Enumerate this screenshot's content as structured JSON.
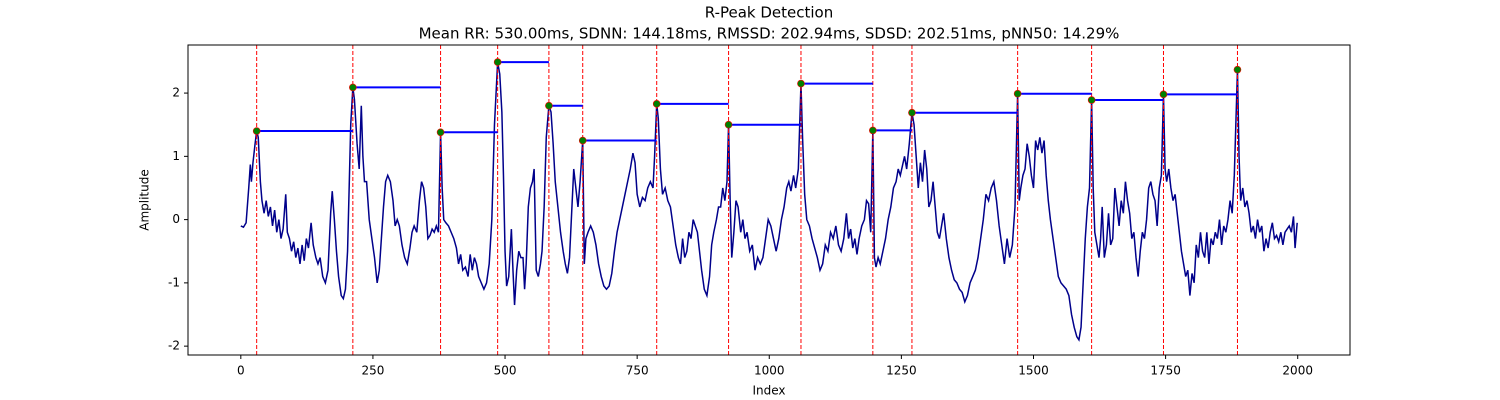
{
  "chart_data": {
    "type": "line",
    "title": "R-Peak Detection",
    "subtitle": "Mean RR: 530.00ms, SDNN: 144.18ms, RMSSD: 202.94ms, SDSD: 202.51ms, pNN50: 14.29%",
    "x_label": "Index",
    "y_label": "Amplitude",
    "xlim": [
      -99.95,
      2098.95
    ],
    "ylim": [
      -2.14,
      2.76
    ],
    "xticks": [
      0,
      250,
      500,
      750,
      1000,
      1250,
      1500,
      1750,
      2000
    ],
    "yticks": [
      -2,
      -1,
      0,
      1,
      2
    ],
    "signal": {
      "color": "#00008b",
      "x": [
        0,
        5,
        10,
        15,
        18,
        20,
        23,
        27,
        30,
        33,
        37,
        40,
        44,
        48,
        52,
        56,
        60,
        64,
        68,
        72,
        76,
        80,
        85,
        88,
        92,
        96,
        100,
        104,
        108,
        112,
        116,
        120,
        124,
        128,
        133,
        137,
        142,
        146,
        150,
        155,
        160,
        165,
        170,
        173,
        177,
        181,
        185,
        190,
        194,
        198,
        202,
        205,
        208,
        212,
        215,
        220,
        224,
        228,
        231,
        234,
        238,
        243,
        248,
        253,
        258,
        262,
        266,
        270,
        274,
        278,
        283,
        288,
        292,
        296,
        300,
        305,
        310,
        315,
        320,
        324,
        328,
        333,
        338,
        342,
        346,
        350,
        354,
        358,
        362,
        366,
        370,
        374,
        378,
        381,
        384,
        388,
        393,
        398,
        403,
        408,
        412,
        416,
        420,
        425,
        430,
        434,
        438,
        442,
        446,
        450,
        455,
        460,
        465,
        470,
        475,
        480,
        486,
        490,
        494,
        497,
        500,
        503,
        507,
        512,
        515,
        518,
        522,
        526,
        530,
        534,
        537,
        540,
        544,
        548,
        552,
        555,
        559,
        563,
        567,
        570,
        574,
        578,
        583,
        587,
        591,
        595,
        600,
        605,
        610,
        614,
        618,
        622,
        626,
        630,
        634,
        638,
        642,
        647,
        650,
        653,
        657,
        662,
        667,
        672,
        677,
        682,
        687,
        692,
        697,
        702,
        707,
        712,
        717,
        722,
        727,
        732,
        737,
        742,
        746,
        750,
        755,
        760,
        765,
        770,
        775,
        780,
        783,
        787,
        790,
        794,
        798,
        803,
        808,
        813,
        818,
        823,
        828,
        832,
        836,
        840,
        844,
        848,
        852,
        856,
        860,
        864,
        868,
        872,
        877,
        882,
        887,
        891,
        895,
        900,
        904,
        908,
        912,
        916,
        920,
        923,
        926,
        929,
        933,
        937,
        941,
        946,
        950,
        954,
        958,
        963,
        968,
        973,
        978,
        983,
        988,
        993,
        998,
        1003,
        1008,
        1013,
        1018,
        1023,
        1028,
        1033,
        1037,
        1041,
        1046,
        1050,
        1055,
        1060,
        1063,
        1067,
        1071,
        1076,
        1081,
        1086,
        1091,
        1096,
        1101,
        1106,
        1111,
        1116,
        1121,
        1126,
        1131,
        1136,
        1141,
        1146,
        1150,
        1154,
        1158,
        1162,
        1166,
        1170,
        1175,
        1180,
        1184,
        1188,
        1192,
        1196,
        1199,
        1202,
        1206,
        1210,
        1215,
        1220,
        1225,
        1230,
        1235,
        1240,
        1244,
        1248,
        1252,
        1256,
        1260,
        1265,
        1270,
        1274,
        1278,
        1282,
        1286,
        1290,
        1294,
        1298,
        1302,
        1306,
        1310,
        1314,
        1318,
        1322,
        1326,
        1330,
        1335,
        1340,
        1345,
        1350,
        1355,
        1360,
        1365,
        1370,
        1375,
        1380,
        1385,
        1390,
        1395,
        1400,
        1405,
        1410,
        1415,
        1420,
        1425,
        1430,
        1435,
        1440,
        1445,
        1450,
        1455,
        1460,
        1465,
        1470,
        1473,
        1476,
        1480,
        1484,
        1488,
        1492,
        1496,
        1500,
        1504,
        1508,
        1512,
        1516,
        1520,
        1524,
        1528,
        1532,
        1537,
        1542,
        1547,
        1552,
        1557,
        1562,
        1567,
        1572,
        1577,
        1582,
        1586,
        1590,
        1594,
        1598,
        1602,
        1606,
        1610,
        1613,
        1616,
        1620,
        1624,
        1627,
        1630,
        1634,
        1638,
        1642,
        1646,
        1650,
        1654,
        1658,
        1662,
        1666,
        1670,
        1674,
        1678,
        1682,
        1686,
        1690,
        1694,
        1698,
        1702,
        1706,
        1710,
        1714,
        1718,
        1722,
        1726,
        1730,
        1734,
        1738,
        1742,
        1746,
        1749,
        1752,
        1756,
        1760,
        1764,
        1768,
        1772,
        1776,
        1780,
        1784,
        1788,
        1792,
        1796,
        1800,
        1804,
        1808,
        1812,
        1816,
        1820,
        1824,
        1828,
        1832,
        1836,
        1840,
        1844,
        1848,
        1852,
        1856,
        1860,
        1864,
        1868,
        1872,
        1876,
        1880,
        1886,
        1889,
        1892,
        1896,
        1900,
        1904,
        1908,
        1912,
        1916,
        1920,
        1924,
        1928,
        1932,
        1936,
        1940,
        1944,
        1948,
        1952,
        1956,
        1960,
        1964,
        1968,
        1972,
        1976,
        1980,
        1984,
        1988,
        1992,
        1995,
        1999
      ],
      "values": [
        -0.1,
        -0.12,
        -0.05,
        0.5,
        0.87,
        0.6,
        0.9,
        1.2,
        1.4,
        1.3,
        0.6,
        0.3,
        0.1,
        0.3,
        0.05,
        0.2,
        -0.1,
        0.15,
        -0.2,
        0.0,
        -0.3,
        -0.15,
        0.4,
        -0.2,
        -0.3,
        -0.5,
        -0.35,
        -0.6,
        -0.45,
        -0.7,
        -0.4,
        -0.65,
        -0.3,
        -0.45,
        -0.05,
        -0.4,
        -0.6,
        -0.7,
        -0.6,
        -0.9,
        -1.0,
        -0.8,
        0.1,
        0.45,
        0.0,
        -0.5,
        -0.9,
        -1.2,
        -1.25,
        -1.1,
        -0.5,
        0.5,
        1.5,
        2.09,
        1.9,
        1.2,
        0.8,
        1.8,
        1.0,
        0.6,
        0.6,
        0.0,
        -0.3,
        -0.6,
        -1.0,
        -0.8,
        -0.3,
        0.2,
        0.6,
        0.7,
        0.6,
        0.3,
        -0.1,
        0.0,
        -0.1,
        -0.4,
        -0.6,
        -0.7,
        -0.45,
        -0.2,
        -0.1,
        -0.2,
        0.3,
        0.6,
        0.5,
        0.2,
        -0.3,
        -0.25,
        -0.15,
        -0.2,
        -0.1,
        -0.2,
        1.38,
        0.5,
        0.0,
        -0.05,
        -0.1,
        -0.2,
        -0.3,
        -0.45,
        -0.7,
        -0.55,
        -0.8,
        -0.75,
        -0.9,
        -0.55,
        -0.8,
        -0.6,
        -0.7,
        -0.9,
        -1.0,
        -1.1,
        -1.0,
        -0.7,
        0.0,
        1.5,
        2.49,
        2.3,
        1.7,
        0.7,
        -0.5,
        -1.05,
        -0.9,
        -0.15,
        -0.8,
        -1.35,
        -0.8,
        -0.5,
        -0.6,
        -0.6,
        -1.1,
        -0.7,
        0.2,
        0.5,
        0.6,
        0.8,
        -0.8,
        -0.9,
        -0.7,
        -0.5,
        0.2,
        1.3,
        1.8,
        1.7,
        1.2,
        0.6,
        0.2,
        -0.2,
        -0.5,
        -0.7,
        -0.85,
        -0.6,
        0.1,
        0.8,
        0.5,
        0.2,
        0.6,
        1.25,
        -0.7,
        -0.3,
        -0.2,
        -0.1,
        -0.2,
        -0.4,
        -0.7,
        -0.9,
        -1.05,
        -1.1,
        -1.05,
        -0.85,
        -0.5,
        -0.2,
        0.0,
        0.2,
        0.4,
        0.6,
        0.8,
        1.05,
        0.9,
        0.4,
        0.2,
        0.35,
        0.3,
        0.5,
        0.6,
        0.5,
        1.0,
        1.83,
        1.6,
        0.8,
        0.4,
        0.5,
        0.3,
        0.2,
        -0.1,
        -0.4,
        -0.6,
        -0.7,
        -0.3,
        -0.6,
        -0.5,
        -0.2,
        -0.3,
        0.0,
        -0.1,
        -0.2,
        -0.5,
        -0.8,
        -1.1,
        -1.2,
        -0.9,
        -0.4,
        -0.2,
        0.0,
        0.2,
        0.2,
        0.5,
        0.3,
        0.6,
        1.5,
        0.3,
        -0.6,
        -0.2,
        0.3,
        0.2,
        -0.2,
        0.0,
        -0.3,
        -0.2,
        -0.5,
        -0.4,
        -0.8,
        -0.6,
        -0.7,
        -0.6,
        -0.3,
        0.0,
        -0.1,
        -0.3,
        -0.5,
        -0.3,
        0.0,
        0.2,
        0.5,
        0.6,
        0.45,
        0.7,
        0.5,
        0.8,
        2.15,
        1.3,
        0.4,
        0.0,
        -0.1,
        -0.3,
        -0.45,
        -0.6,
        -0.8,
        -0.7,
        -0.4,
        -0.5,
        -0.2,
        -0.3,
        -0.1,
        -0.4,
        -0.5,
        -0.3,
        0.1,
        -0.3,
        -0.15,
        -0.45,
        -0.3,
        -0.55,
        -0.3,
        -0.1,
        0.0,
        0.3,
        0.25,
        -0.2,
        1.41,
        -0.6,
        -0.75,
        -0.6,
        -0.7,
        -0.5,
        -0.3,
        0.0,
        0.2,
        0.5,
        0.6,
        0.8,
        0.7,
        0.85,
        1.0,
        0.8,
        1.2,
        1.69,
        1.5,
        1.0,
        0.5,
        0.9,
        0.6,
        1.1,
        0.8,
        0.2,
        0.3,
        0.6,
        0.2,
        -0.2,
        -0.3,
        -0.1,
        0.1,
        -0.3,
        -0.6,
        -0.8,
        -0.95,
        -1.0,
        -1.1,
        -1.15,
        -1.3,
        -1.2,
        -1.0,
        -0.9,
        -0.8,
        -0.6,
        -0.3,
        0.0,
        0.4,
        0.3,
        0.5,
        0.6,
        0.3,
        -0.1,
        -0.4,
        -0.7,
        -0.3,
        -0.6,
        -0.4,
        0.2,
        1.99,
        0.3,
        0.5,
        0.7,
        0.8,
        1.2,
        1.0,
        0.7,
        0.5,
        1.25,
        1.1,
        1.3,
        1.05,
        1.25,
        0.7,
        0.3,
        0.0,
        -0.3,
        -0.6,
        -0.9,
        -1.0,
        -1.05,
        -1.1,
        -1.2,
        -1.5,
        -1.7,
        -1.85,
        -1.9,
        -1.7,
        -1.0,
        -0.3,
        0.2,
        0.5,
        1.89,
        0.5,
        -0.2,
        -0.4,
        -0.6,
        -0.3,
        0.2,
        -0.6,
        -0.4,
        0.1,
        -0.4,
        -0.3,
        0.5,
        0.2,
        -0.1,
        0.3,
        0.1,
        0.6,
        0.3,
        0.1,
        -0.3,
        -0.2,
        -0.6,
        -0.9,
        -0.5,
        -0.2,
        -0.3,
        0.0,
        0.5,
        0.6,
        0.4,
        0.3,
        -0.1,
        0.5,
        0.7,
        1.98,
        0.8,
        0.6,
        0.8,
        0.5,
        0.3,
        0.4,
        0.1,
        -0.2,
        -0.5,
        -0.7,
        -0.9,
        -0.8,
        -1.2,
        -0.85,
        -1.0,
        -0.4,
        -0.6,
        -0.2,
        -0.5,
        -0.6,
        -0.2,
        -0.7,
        -0.3,
        -0.4,
        -0.2,
        -0.3,
        0.0,
        -0.4,
        -0.1,
        -0.2,
        0.0,
        0.3,
        0.1,
        0.7,
        2.37,
        1.0,
        0.3,
        0.5,
        0.2,
        0.3,
        0.1,
        -0.2,
        -0.1,
        -0.3,
        0.0,
        -0.2,
        -0.1,
        -0.5,
        -0.3,
        -0.45,
        -0.2,
        -0.05,
        -0.3,
        -0.25,
        -0.35,
        -0.2,
        -0.4,
        -0.2,
        -0.15,
        -0.1,
        -0.2,
        0.05,
        -0.45,
        -0.05
      ]
    },
    "peaks": {
      "color": "#008000",
      "x": [
        30,
        212,
        378,
        486,
        583,
        647,
        787,
        923,
        1060,
        1196,
        1270,
        1470,
        1610,
        1746,
        1886
      ],
      "values": [
        1.4,
        2.09,
        1.38,
        2.49,
        1.8,
        1.25,
        1.83,
        1.5,
        2.15,
        1.41,
        1.69,
        1.99,
        1.89,
        1.98,
        2.37
      ]
    },
    "peak_line_color": "#ff0000",
    "interval_line_color": "#0000ff"
  }
}
